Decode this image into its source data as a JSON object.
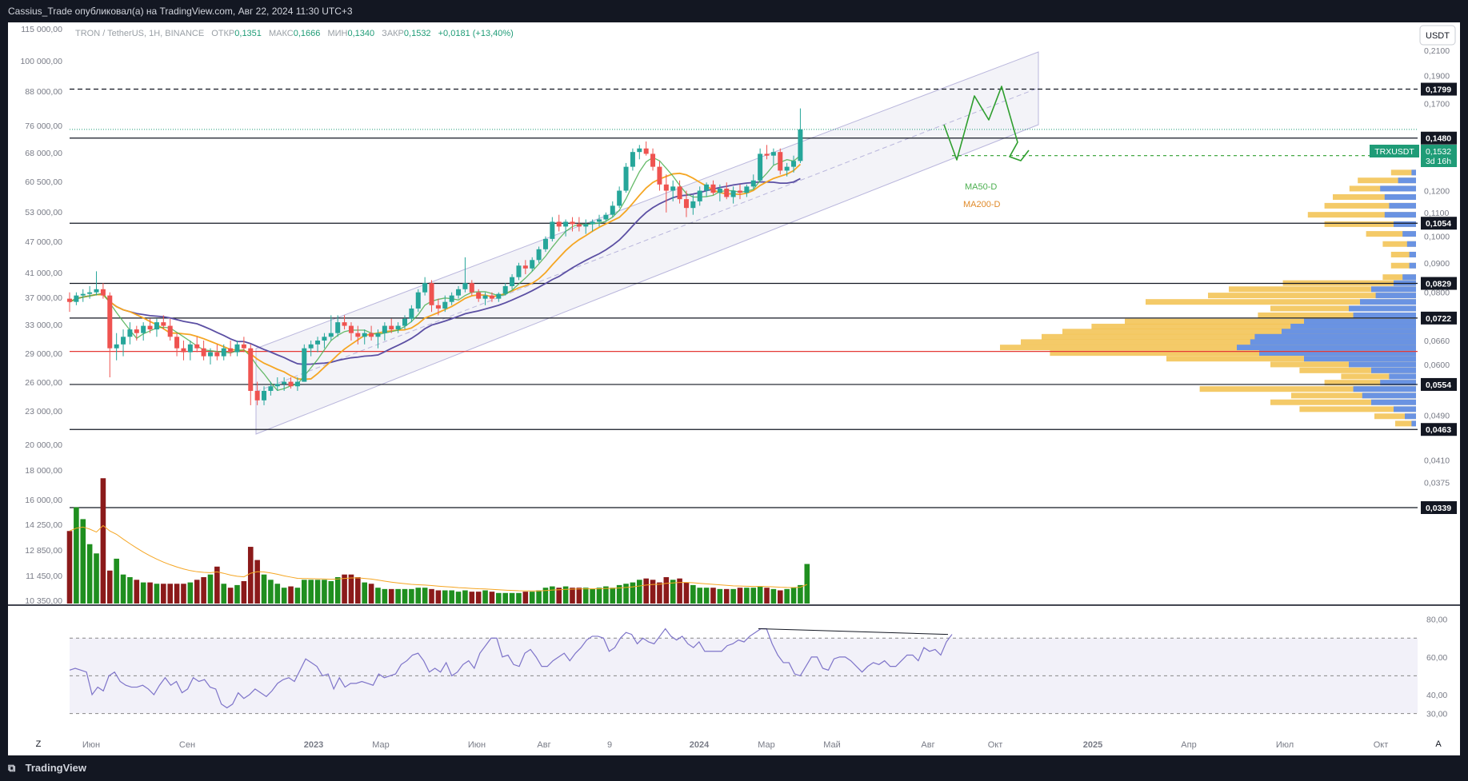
{
  "header": {
    "publisher_line": "Cassius_Trade опубликовал(а) на TradingView.com, Авг 22, 2024 11:30 UTC+3"
  },
  "legend": {
    "symbol": "TRON / TetherUS, 1Н, BINANCE",
    "open_label": "ОТКР",
    "open": "0,1351",
    "high_label": "МАКС",
    "high": "0,1666",
    "low_label": "МИН",
    "low": "0,1340",
    "close_label": "ЗАКР",
    "close": "0,1532",
    "change": "+0,0181 (+13,40%)"
  },
  "currency_button": "USDT",
  "footer": {
    "brand": "TradingView",
    "auto_btn": "A",
    "zoom_btn": "Z"
  },
  "colors": {
    "bg": "#ffffff",
    "up": "#26a69a",
    "down": "#ef5350",
    "vol_up": "#1f8f1f",
    "vol_down": "#8b1a1a",
    "ma50": "#4caf50",
    "ma200": "#f5a623",
    "ma_slow": "#5b4fa3",
    "rsi": "#7e74c9",
    "arrow": "#2e9e2e",
    "vp_a": "#f2c14e",
    "vp_b": "#5b8def"
  },
  "chart_data": {
    "type": "candlestick",
    "title": "",
    "x_ticks": [
      "Июн",
      "Сен",
      "2023",
      "Мар",
      "Июн",
      "Авг",
      "9",
      "2024",
      "Мар",
      "Май",
      "Авг",
      "Окт",
      "2025",
      "Апр",
      "Июл",
      "Окт"
    ],
    "y_right_ticks": [
      "0,2100",
      "0,1900",
      "0,1700",
      "0,1200",
      "0,1100",
      "0,1000",
      "0,0900",
      "0,0800",
      "0,0660",
      "0,0600",
      "0,0490",
      "0,0410",
      "0,0375"
    ],
    "y_left_ticks": [
      "115 000,00",
      "100 000,00",
      "88 000,00",
      "76 000,00",
      "68 000,00",
      "60 500,00",
      "53 000,00",
      "47 000,00",
      "41 000,00",
      "37 000,00",
      "33 000,00",
      "29 000,00",
      "26 000,00",
      "23 000,00",
      "20 000,00",
      "18 000,00",
      "16 000,00",
      "14 250,00",
      "12 850,00",
      "11 450,00",
      "10 350,00"
    ],
    "horizontal_levels": [
      {
        "value": "0,1799",
        "style": "dashed"
      },
      {
        "value": "0,1480",
        "style": "solid"
      },
      {
        "value": "0,1380",
        "style": "dashed-green"
      },
      {
        "value": "0,1054",
        "style": "solid"
      },
      {
        "value": "0,0829",
        "style": "solid"
      },
      {
        "value": "0,0722",
        "style": "solid"
      },
      {
        "value": "0,0554",
        "style": "solid"
      },
      {
        "value": "0,0463",
        "style": "solid"
      },
      {
        "value": "0,0339",
        "style": "solid"
      }
    ],
    "red_line_level": 0.0632,
    "symbol_tag": "TRXUSDT",
    "last_price": "0,1532",
    "countdown": "3d 16h",
    "ma_labels": [
      "MA50-D",
      "MA200-D"
    ],
    "rsi": {
      "ticks": [
        "80,00",
        "60,00",
        "40,00",
        "30,00"
      ],
      "upper": 70,
      "mid": 50,
      "lower": 30,
      "values": [
        53,
        54,
        53,
        52,
        40,
        44,
        42,
        50,
        52,
        47,
        45,
        44,
        44,
        45,
        43,
        40,
        45,
        49,
        45,
        47,
        41,
        43,
        49,
        47,
        48,
        44,
        43,
        35,
        33,
        35,
        41,
        38,
        40,
        43,
        41,
        39,
        42,
        46,
        48,
        49,
        47,
        53,
        59,
        57,
        55,
        50,
        51,
        43,
        49,
        44,
        46,
        46,
        47,
        46,
        45,
        51,
        49,
        50,
        51,
        56,
        58,
        61,
        62,
        58,
        52,
        54,
        52,
        57,
        50,
        52,
        56,
        58,
        54,
        62,
        66,
        70,
        70,
        60,
        61,
        56,
        55,
        62,
        64,
        60,
        55,
        55,
        58,
        60,
        62,
        58,
        62,
        65,
        69,
        71,
        71,
        70,
        63,
        65,
        70,
        73,
        72,
        67,
        70,
        68,
        67,
        71,
        75,
        71,
        69,
        71,
        67,
        65,
        68,
        63,
        63,
        63,
        63,
        66,
        67,
        69,
        68,
        71,
        73,
        75,
        75,
        67,
        61,
        57,
        57,
        51,
        50,
        55,
        60,
        60,
        54,
        53,
        59,
        60,
        60,
        58,
        55,
        52,
        55,
        57,
        56,
        58,
        55,
        55,
        58,
        61,
        61,
        58,
        65,
        63,
        64,
        61,
        68,
        72
      ]
    },
    "candles": [
      [
        0.078,
        0.08,
        0.074,
        0.077
      ],
      [
        0.077,
        0.08,
        0.076,
        0.079
      ],
      [
        0.079,
        0.081,
        0.077,
        0.0795
      ],
      [
        0.0795,
        0.082,
        0.078,
        0.08
      ],
      [
        0.08,
        0.087,
        0.079,
        0.081
      ],
      [
        0.081,
        0.083,
        0.078,
        0.079
      ],
      [
        0.079,
        0.08,
        0.057,
        0.064
      ],
      [
        0.064,
        0.068,
        0.061,
        0.065
      ],
      [
        0.065,
        0.069,
        0.062,
        0.067
      ],
      [
        0.067,
        0.071,
        0.065,
        0.069
      ],
      [
        0.069,
        0.07,
        0.066,
        0.068
      ],
      [
        0.068,
        0.071,
        0.066,
        0.07
      ],
      [
        0.07,
        0.072,
        0.068,
        0.069
      ],
      [
        0.069,
        0.072,
        0.067,
        0.071
      ],
      [
        0.071,
        0.073,
        0.069,
        0.07
      ],
      [
        0.07,
        0.072,
        0.066,
        0.067
      ],
      [
        0.067,
        0.068,
        0.062,
        0.064
      ],
      [
        0.064,
        0.066,
        0.061,
        0.063
      ],
      [
        0.063,
        0.066,
        0.061,
        0.065
      ],
      [
        0.065,
        0.067,
        0.063,
        0.064
      ],
      [
        0.064,
        0.066,
        0.061,
        0.062
      ],
      [
        0.062,
        0.064,
        0.06,
        0.063
      ],
      [
        0.063,
        0.065,
        0.061,
        0.062
      ],
      [
        0.062,
        0.065,
        0.061,
        0.064
      ],
      [
        0.064,
        0.066,
        0.062,
        0.063
      ],
      [
        0.063,
        0.066,
        0.062,
        0.065
      ],
      [
        0.065,
        0.067,
        0.063,
        0.064
      ],
      [
        0.064,
        0.065,
        0.051,
        0.054
      ],
      [
        0.054,
        0.056,
        0.051,
        0.052
      ],
      [
        0.052,
        0.055,
        0.051,
        0.054
      ],
      [
        0.054,
        0.056,
        0.053,
        0.055
      ],
      [
        0.055,
        0.057,
        0.054,
        0.0555
      ],
      [
        0.0555,
        0.057,
        0.054,
        0.056
      ],
      [
        0.056,
        0.057,
        0.0545,
        0.055
      ],
      [
        0.055,
        0.057,
        0.054,
        0.056
      ],
      [
        0.056,
        0.065,
        0.056,
        0.064
      ],
      [
        0.064,
        0.066,
        0.062,
        0.065
      ],
      [
        0.065,
        0.067,
        0.063,
        0.066
      ],
      [
        0.066,
        0.068,
        0.064,
        0.067
      ],
      [
        0.067,
        0.073,
        0.066,
        0.068
      ],
      [
        0.068,
        0.073,
        0.067,
        0.071
      ],
      [
        0.071,
        0.073,
        0.069,
        0.07
      ],
      [
        0.07,
        0.071,
        0.066,
        0.068
      ],
      [
        0.068,
        0.07,
        0.065,
        0.067
      ],
      [
        0.067,
        0.069,
        0.065,
        0.068
      ],
      [
        0.068,
        0.07,
        0.066,
        0.067
      ],
      [
        0.067,
        0.069,
        0.064,
        0.068
      ],
      [
        0.068,
        0.071,
        0.066,
        0.07
      ],
      [
        0.07,
        0.072,
        0.068,
        0.069
      ],
      [
        0.069,
        0.071,
        0.068,
        0.07
      ],
      [
        0.07,
        0.073,
        0.069,
        0.072
      ],
      [
        0.072,
        0.076,
        0.071,
        0.075
      ],
      [
        0.075,
        0.081,
        0.074,
        0.08
      ],
      [
        0.08,
        0.085,
        0.079,
        0.083
      ],
      [
        0.083,
        0.084,
        0.074,
        0.076
      ],
      [
        0.076,
        0.078,
        0.073,
        0.075
      ],
      [
        0.075,
        0.079,
        0.074,
        0.077
      ],
      [
        0.077,
        0.08,
        0.076,
        0.079
      ],
      [
        0.079,
        0.082,
        0.078,
        0.081
      ],
      [
        0.081,
        0.092,
        0.08,
        0.083
      ],
      [
        0.083,
        0.084,
        0.079,
        0.08
      ],
      [
        0.08,
        0.081,
        0.077,
        0.078
      ],
      [
        0.078,
        0.08,
        0.076,
        0.079
      ],
      [
        0.079,
        0.08,
        0.077,
        0.078
      ],
      [
        0.078,
        0.08,
        0.077,
        0.0795
      ],
      [
        0.0795,
        0.083,
        0.079,
        0.082
      ],
      [
        0.082,
        0.086,
        0.081,
        0.085
      ],
      [
        0.085,
        0.09,
        0.084,
        0.089
      ],
      [
        0.089,
        0.091,
        0.086,
        0.088
      ],
      [
        0.088,
        0.092,
        0.087,
        0.091
      ],
      [
        0.091,
        0.096,
        0.09,
        0.095
      ],
      [
        0.095,
        0.1,
        0.094,
        0.099
      ],
      [
        0.099,
        0.108,
        0.098,
        0.106
      ],
      [
        0.106,
        0.109,
        0.102,
        0.104
      ],
      [
        0.104,
        0.107,
        0.1,
        0.106
      ],
      [
        0.106,
        0.108,
        0.102,
        0.105
      ],
      [
        0.105,
        0.108,
        0.102,
        0.104
      ],
      [
        0.104,
        0.107,
        0.101,
        0.105
      ],
      [
        0.105,
        0.107,
        0.102,
        0.106
      ],
      [
        0.106,
        0.109,
        0.104,
        0.107
      ],
      [
        0.107,
        0.11,
        0.106,
        0.109
      ],
      [
        0.109,
        0.115,
        0.108,
        0.113
      ],
      [
        0.113,
        0.122,
        0.112,
        0.12
      ],
      [
        0.12,
        0.134,
        0.119,
        0.132
      ],
      [
        0.132,
        0.142,
        0.13,
        0.14
      ],
      [
        0.14,
        0.144,
        0.136,
        0.142
      ],
      [
        0.142,
        0.146,
        0.138,
        0.139
      ],
      [
        0.139,
        0.142,
        0.13,
        0.132
      ],
      [
        0.132,
        0.135,
        0.12,
        0.123
      ],
      [
        0.123,
        0.128,
        0.11,
        0.12
      ],
      [
        0.12,
        0.125,
        0.115,
        0.122
      ],
      [
        0.122,
        0.125,
        0.114,
        0.116
      ],
      [
        0.116,
        0.12,
        0.108,
        0.112
      ],
      [
        0.112,
        0.118,
        0.109,
        0.115
      ],
      [
        0.115,
        0.122,
        0.113,
        0.12
      ],
      [
        0.12,
        0.124,
        0.117,
        0.123
      ],
      [
        0.123,
        0.125,
        0.118,
        0.119
      ],
      [
        0.119,
        0.123,
        0.115,
        0.121
      ],
      [
        0.121,
        0.124,
        0.116,
        0.117
      ],
      [
        0.117,
        0.122,
        0.114,
        0.12
      ],
      [
        0.12,
        0.123,
        0.116,
        0.119
      ],
      [
        0.119,
        0.123,
        0.117,
        0.122
      ],
      [
        0.122,
        0.128,
        0.121,
        0.125
      ],
      [
        0.125,
        0.142,
        0.124,
        0.139
      ],
      [
        0.139,
        0.144,
        0.136,
        0.138
      ],
      [
        0.138,
        0.142,
        0.133,
        0.14
      ],
      [
        0.14,
        0.142,
        0.128,
        0.13
      ],
      [
        0.13,
        0.134,
        0.127,
        0.132
      ],
      [
        0.132,
        0.138,
        0.129,
        0.1351
      ],
      [
        0.1351,
        0.1666,
        0.134,
        0.1532
      ]
    ],
    "volume_relative": [
      0.55,
      0.73,
      0.64,
      0.45,
      0.38,
      0.95,
      0.25,
      0.34,
      0.22,
      0.2,
      0.18,
      0.16,
      0.16,
      0.15,
      0.15,
      0.15,
      0.15,
      0.15,
      0.16,
      0.18,
      0.2,
      0.22,
      0.28,
      0.15,
      0.12,
      0.14,
      0.17,
      0.43,
      0.33,
      0.22,
      0.18,
      0.15,
      0.12,
      0.13,
      0.12,
      0.18,
      0.18,
      0.18,
      0.18,
      0.17,
      0.2,
      0.22,
      0.22,
      0.2,
      0.16,
      0.15,
      0.12,
      0.11,
      0.11,
      0.11,
      0.11,
      0.11,
      0.12,
      0.12,
      0.11,
      0.1,
      0.1,
      0.1,
      0.09,
      0.1,
      0.09,
      0.09,
      0.1,
      0.09,
      0.08,
      0.08,
      0.08,
      0.08,
      0.09,
      0.09,
      0.1,
      0.12,
      0.13,
      0.12,
      0.13,
      0.12,
      0.12,
      0.12,
      0.11,
      0.12,
      0.13,
      0.12,
      0.14,
      0.15,
      0.16,
      0.18,
      0.19,
      0.18,
      0.16,
      0.2,
      0.18,
      0.19,
      0.16,
      0.14,
      0.12,
      0.12,
      0.12,
      0.11,
      0.11,
      0.11,
      0.12,
      0.12,
      0.12,
      0.13,
      0.12,
      0.11,
      0.1,
      0.11,
      0.12,
      0.14,
      0.3
    ],
    "volume_profile": {
      "unit": "relative width",
      "rows": [
        [
          0.129,
          0.06,
          0.02
        ],
        [
          0.125,
          0.14,
          0.08
        ],
        [
          0.121,
          0.16,
          0.16
        ],
        [
          0.117,
          0.2,
          0.14
        ],
        [
          0.113,
          0.22,
          0.12
        ],
        [
          0.109,
          0.26,
          0.14
        ],
        [
          0.105,
          0.22,
          0.1
        ],
        [
          0.101,
          0.12,
          0.06
        ],
        [
          0.097,
          0.08,
          0.04
        ],
        [
          0.093,
          0.06,
          0.03
        ],
        [
          0.089,
          0.06,
          0.03
        ],
        [
          0.085,
          0.08,
          0.06
        ],
        [
          0.083,
          0.32,
          0.1
        ],
        [
          0.081,
          0.45,
          0.2
        ],
        [
          0.079,
          0.5,
          0.18
        ],
        [
          0.077,
          0.65,
          0.25
        ],
        [
          0.075,
          0.35,
          0.3
        ],
        [
          0.073,
          0.38,
          0.28
        ],
        [
          0.0712,
          0.7,
          0.5
        ],
        [
          0.0698,
          0.78,
          0.56
        ],
        [
          0.0684,
          0.85,
          0.6
        ],
        [
          0.067,
          0.9,
          0.72
        ],
        [
          0.0656,
          0.95,
          0.74
        ],
        [
          0.0642,
          1.0,
          0.8
        ],
        [
          0.0628,
          0.88,
          0.7
        ],
        [
          0.0614,
          0.6,
          0.5
        ],
        [
          0.06,
          0.35,
          0.3
        ],
        [
          0.0586,
          0.28,
          0.2
        ],
        [
          0.0572,
          0.18,
          0.12
        ],
        [
          0.0558,
          0.22,
          0.16
        ],
        [
          0.0544,
          0.52,
          0.28
        ],
        [
          0.053,
          0.3,
          0.24
        ],
        [
          0.0516,
          0.35,
          0.2
        ],
        [
          0.0502,
          0.28,
          0.1
        ],
        [
          0.0488,
          0.1,
          0.05
        ],
        [
          0.0474,
          0.05,
          0.02
        ]
      ]
    }
  }
}
